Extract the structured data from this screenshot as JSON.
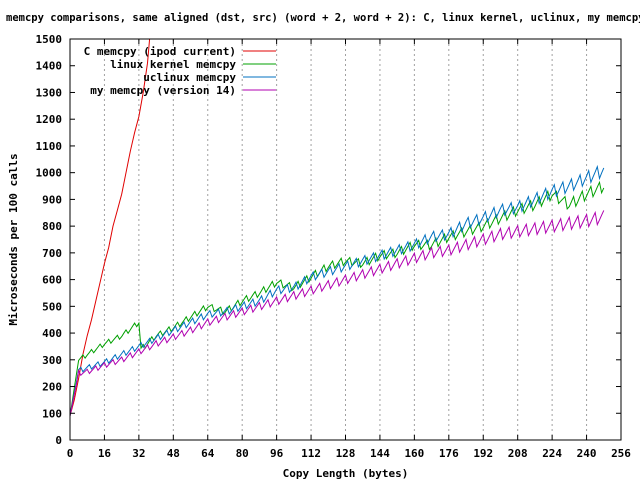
{
  "chart_data": {
    "type": "line",
    "title": "memcpy comparisons, same aligned (dst, src) (word + 2, word + 2): C, linux kernel, uclinux, my memcpy",
    "xlabel": "Copy Length (bytes)",
    "ylabel": "Microseconds per 100 calls",
    "xlim": [
      0,
      256
    ],
    "ylim": [
      0,
      1500
    ],
    "xticks": [
      0,
      16,
      32,
      48,
      64,
      80,
      96,
      112,
      128,
      144,
      160,
      176,
      192,
      208,
      224,
      240,
      256
    ],
    "yticks": [
      0,
      100,
      200,
      300,
      400,
      500,
      600,
      700,
      800,
      900,
      1000,
      1100,
      1200,
      1300,
      1400,
      1500
    ],
    "grid": "vertical dashed at each x tick",
    "legend_position": "top-left",
    "series": [
      {
        "name": "C memcpy (ipod current)",
        "color": "#e00000",
        "shape": "linear",
        "x": [
          0,
          2,
          4,
          6,
          8,
          10,
          12,
          14,
          16,
          18,
          20,
          22,
          24,
          26,
          28,
          30,
          32,
          34,
          36,
          37
        ],
        "y": [
          90,
          150,
          230,
          320,
          390,
          450,
          520,
          590,
          660,
          720,
          800,
          860,
          920,
          1000,
          1080,
          1150,
          1210,
          1300,
          1410,
          1500
        ]
      },
      {
        "name": "linux kernel memcpy",
        "color": "#00a000",
        "shape": "sawtooth",
        "x": [
          0,
          4,
          8,
          16,
          24,
          32,
          33,
          40,
          48,
          56,
          64,
          72,
          80,
          88,
          96,
          104,
          112,
          120,
          128,
          136,
          144,
          152,
          160,
          168,
          176,
          184,
          192,
          200,
          208,
          216,
          224,
          232,
          240,
          248
        ],
        "y": [
          90,
          300,
          320,
          360,
          390,
          440,
          340,
          390,
          420,
          460,
          500,
          480,
          520,
          550,
          590,
          570,
          610,
          650,
          670,
          660,
          690,
          700,
          730,
          730,
          760,
          780,
          800,
          830,
          860,
          880,
          920,
          880,
          920,
          950
        ]
      },
      {
        "name": "uclinux memcpy",
        "color": "#0070c0",
        "shape": "sawtooth",
        "x": [
          0,
          4,
          8,
          16,
          24,
          32,
          40,
          48,
          56,
          64,
          72,
          80,
          88,
          96,
          104,
          112,
          120,
          128,
          136,
          144,
          152,
          160,
          168,
          176,
          184,
          192,
          200,
          208,
          216,
          224,
          232,
          240,
          248
        ],
        "y": [
          90,
          260,
          270,
          290,
          320,
          350,
          380,
          410,
          440,
          470,
          480,
          500,
          520,
          560,
          570,
          610,
          630,
          650,
          670,
          690,
          710,
          730,
          760,
          770,
          810,
          830,
          860,
          870,
          900,
          930,
          950,
          980,
          1010
        ]
      },
      {
        "name": "my memcpy (version 14)",
        "color": "#b000b0",
        "shape": "sawtooth",
        "x": [
          0,
          4,
          8,
          16,
          24,
          32,
          40,
          48,
          56,
          64,
          72,
          80,
          88,
          96,
          104,
          112,
          120,
          128,
          136,
          144,
          152,
          160,
          168,
          176,
          184,
          192,
          200,
          208,
          216,
          224,
          232,
          240,
          248
        ],
        "y": [
          90,
          250,
          255,
          280,
          300,
          330,
          360,
          385,
          410,
          440,
          460,
          480,
          500,
          520,
          540,
          560,
          580,
          600,
          620,
          640,
          660,
          680,
          700,
          710,
          730,
          750,
          770,
          780,
          790,
          800,
          810,
          820,
          835
        ]
      }
    ]
  }
}
